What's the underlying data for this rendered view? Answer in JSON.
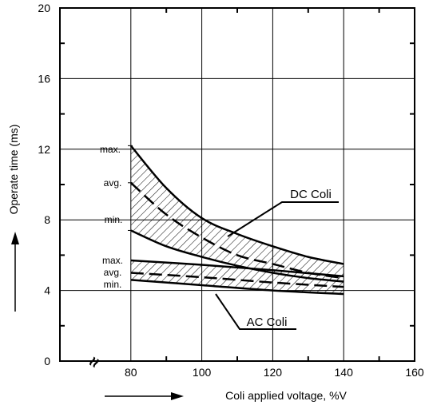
{
  "chart_data": {
    "type": "line",
    "xlabel": "Coli applied voltage, %V",
    "ylabel": "Operate time (ms)",
    "xlim": [
      60,
      160
    ],
    "ylim": [
      0,
      20
    ],
    "x_ticks": [
      80,
      100,
      120,
      140,
      160
    ],
    "y_ticks": [
      0,
      4,
      8,
      12,
      16,
      20
    ],
    "x_tick_labels": [
      "80",
      "100",
      "120",
      "140",
      "160"
    ],
    "y_tick_labels": [
      "0",
      "4",
      "8",
      "12",
      "16",
      "20"
    ],
    "x_zero_label": "0",
    "grid": true,
    "axis_break_symbol": "≈",
    "series": [
      {
        "group": "DC Coli",
        "level": "max.",
        "style": "solid",
        "x": [
          80,
          90,
          100,
          110,
          120,
          130,
          140
        ],
        "y": [
          12.2,
          9.8,
          8.1,
          7.2,
          6.5,
          5.9,
          5.5
        ]
      },
      {
        "group": "DC Coli",
        "level": "avg.",
        "style": "dashed",
        "x": [
          80,
          90,
          100,
          110,
          120,
          130,
          140
        ],
        "y": [
          10.1,
          8.3,
          7.0,
          6.0,
          5.5,
          5.0,
          4.7
        ]
      },
      {
        "group": "DC Coli",
        "level": "min.",
        "style": "solid",
        "x": [
          80,
          90,
          100,
          110,
          120,
          130,
          140
        ],
        "y": [
          7.4,
          6.5,
          5.9,
          5.4,
          5.0,
          4.7,
          4.5
        ]
      },
      {
        "group": "AC Coli",
        "level": "max.",
        "style": "solid",
        "x": [
          80,
          100,
          120,
          140
        ],
        "y": [
          5.7,
          5.45,
          5.15,
          4.8
        ]
      },
      {
        "group": "AC Coli",
        "level": "avg.",
        "style": "dashed",
        "x": [
          80,
          100,
          120,
          140
        ],
        "y": [
          5.0,
          4.75,
          4.45,
          4.2
        ]
      },
      {
        "group": "AC Coli",
        "level": "min.",
        "style": "solid",
        "x": [
          80,
          100,
          120,
          140
        ],
        "y": [
          4.6,
          4.3,
          4.0,
          3.8
        ]
      }
    ],
    "annotations": {
      "dc_label": "DC Coli",
      "ac_label": "AC Coli",
      "dc_max": "max.",
      "dc_avg": "avg.",
      "dc_min": "min.",
      "ac_max": "max.",
      "ac_avg": "avg.",
      "ac_min": "min."
    }
  }
}
